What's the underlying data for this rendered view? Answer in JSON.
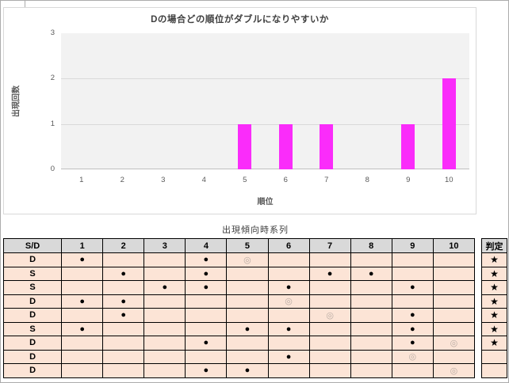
{
  "chart_data": {
    "type": "bar",
    "title": "Dの場合どの順位がダブルになりやすいか",
    "categories": [
      "1",
      "2",
      "3",
      "4",
      "5",
      "6",
      "7",
      "8",
      "9",
      "10"
    ],
    "values": [
      0,
      0,
      0,
      0,
      1,
      1,
      1,
      0,
      1,
      2
    ],
    "xlabel": "順位",
    "ylabel": "出現回数",
    "ylim": [
      0,
      3
    ],
    "yticks": [
      0,
      1,
      2,
      3
    ],
    "grid": true,
    "legend": false
  },
  "colors": {
    "bar": "#fa2cfa",
    "plot_bg": "#f2f2f2",
    "gridline": "#d9d9d9",
    "axis_line": "#bfbfbf",
    "header_bg": "#d9d9d9",
    "row_bg": "#fce4d6",
    "double_circle": "#b9aca4",
    "title_text": "#404040",
    "axis_text": "#595959"
  },
  "table": {
    "title": "出現傾向時系列",
    "corner_header": "S/D",
    "col_headers": [
      "1",
      "2",
      "3",
      "4",
      "5",
      "6",
      "7",
      "8",
      "9",
      "10"
    ],
    "judgment_header": "判定",
    "symbols": {
      "filled": "●",
      "double": "◎",
      "star": "★"
    },
    "rows": [
      {
        "type": "D",
        "cells": [
          "●",
          "",
          "",
          "●",
          "◎",
          "",
          "",
          "",
          "",
          ""
        ],
        "judgment": "★"
      },
      {
        "type": "S",
        "cells": [
          "",
          "●",
          "",
          "●",
          "",
          "",
          "●",
          "●",
          "",
          ""
        ],
        "judgment": "★"
      },
      {
        "type": "S",
        "cells": [
          "",
          "",
          "●",
          "●",
          "",
          "●",
          "",
          "",
          "●",
          ""
        ],
        "judgment": "★"
      },
      {
        "type": "D",
        "cells": [
          "●",
          "●",
          "",
          "",
          "",
          "◎",
          "",
          "",
          "",
          ""
        ],
        "judgment": "★"
      },
      {
        "type": "D",
        "cells": [
          "",
          "●",
          "",
          "",
          "",
          "",
          "◎",
          "",
          "●",
          ""
        ],
        "judgment": "★"
      },
      {
        "type": "S",
        "cells": [
          "●",
          "",
          "",
          "",
          "●",
          "●",
          "",
          "",
          "●",
          ""
        ],
        "judgment": "★"
      },
      {
        "type": "D",
        "cells": [
          "",
          "",
          "",
          "●",
          "",
          "",
          "",
          "",
          "●",
          "◎"
        ],
        "judgment": "★"
      },
      {
        "type": "D",
        "cells": [
          "",
          "",
          "",
          "",
          "",
          "●",
          "",
          "",
          "◎",
          ""
        ],
        "judgment": ""
      },
      {
        "type": "D",
        "cells": [
          "",
          "",
          "",
          "●",
          "●",
          "",
          "",
          "",
          "",
          "◎"
        ],
        "judgment": ""
      }
    ]
  }
}
